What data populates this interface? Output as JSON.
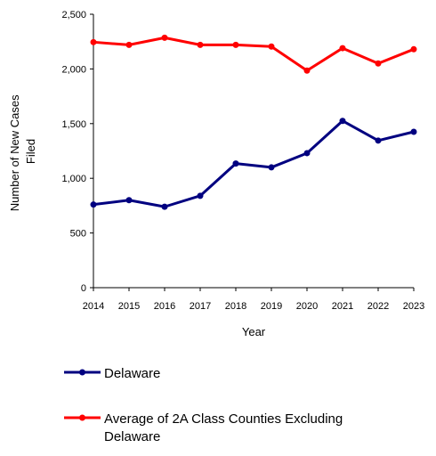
{
  "chart_data": {
    "type": "line",
    "x": [
      "2014",
      "2015",
      "2016",
      "2017",
      "2018",
      "2019",
      "2020",
      "2021",
      "2022",
      "2023"
    ],
    "ylabel_lines": [
      "Number of New Cases",
      "Filed"
    ],
    "xlabel": "Year",
    "ylim": [
      0,
      2500
    ],
    "yticks": [
      0,
      500,
      1000,
      1500,
      2000,
      2500
    ],
    "ytick_labels": [
      "0",
      "500",
      "1,000",
      "1,500",
      "2,000",
      "2,500"
    ],
    "grid": false,
    "legend_position": "bottom",
    "series": [
      {
        "name": "Delaware",
        "color": "#000080",
        "values": [
          760,
          800,
          740,
          840,
          1135,
          1100,
          1230,
          1525,
          1345,
          1425
        ]
      },
      {
        "name_lines": [
          "Average of 2A Class Counties Excluding",
          "Delaware"
        ],
        "color": "#ff0000",
        "values": [
          2245,
          2220,
          2285,
          2220,
          2220,
          2205,
          1985,
          2190,
          2050,
          2180
        ]
      }
    ]
  }
}
